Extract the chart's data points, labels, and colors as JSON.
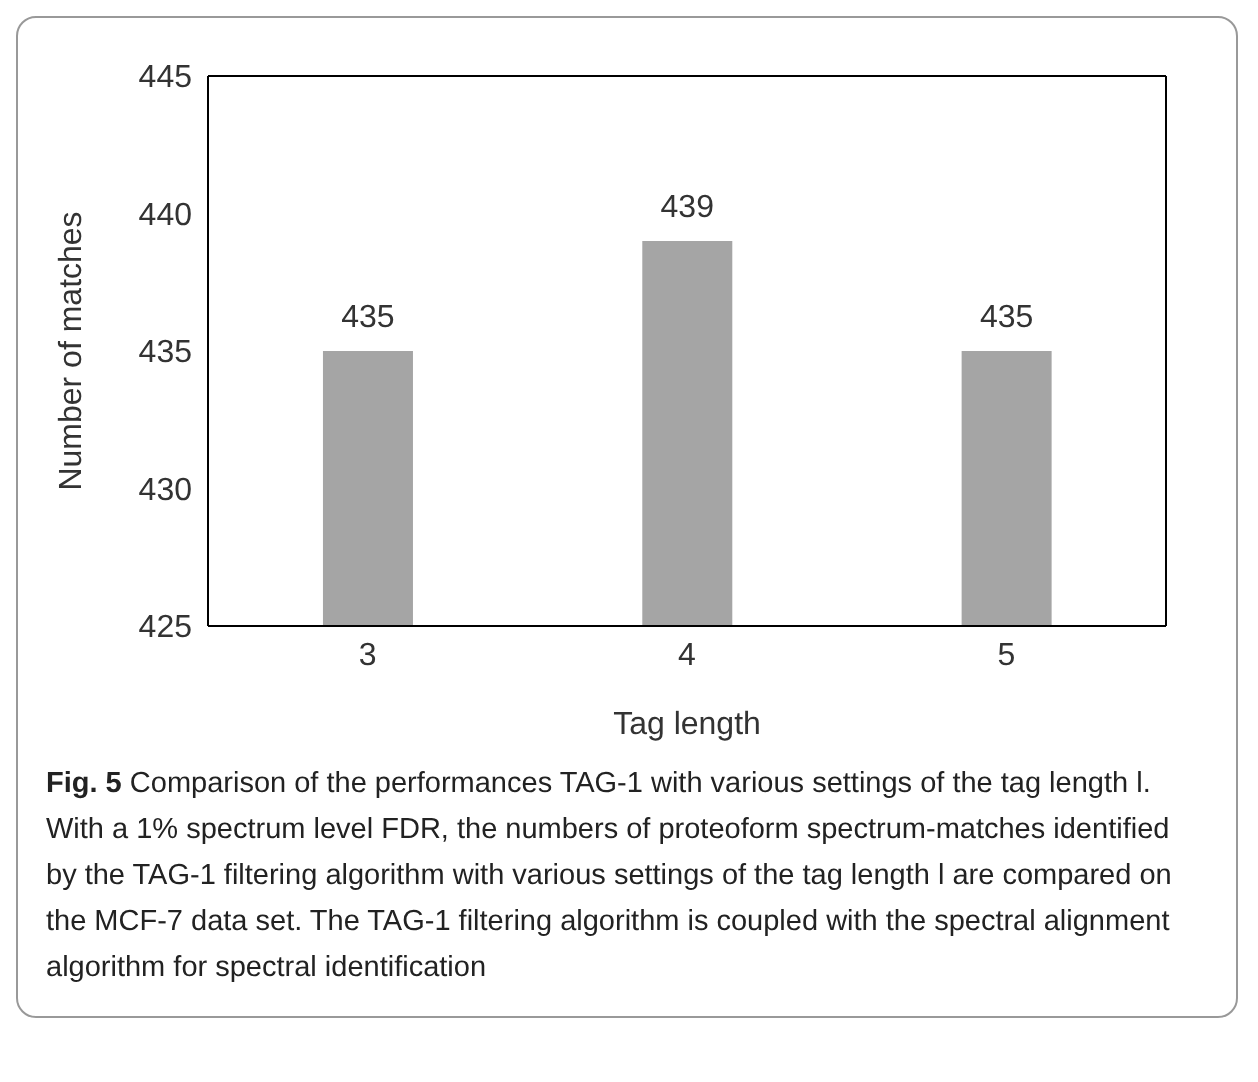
{
  "chart_data": {
    "type": "bar",
    "xlabel": "Tag length",
    "ylabel": "Number of matches",
    "categories": [
      "3",
      "4",
      "5"
    ],
    "values": [
      435,
      439,
      435
    ],
    "color": "#a5a5a5",
    "ylim": [
      425,
      445
    ],
    "yticks": [
      425,
      430,
      435,
      440,
      445
    ],
    "grid": false,
    "data_labels": true,
    "annotations": [
      "Fig. 5",
      "Comparison of the performances TAG-1 with various settings of the tag length l. With a 1% spectrum level FDR, the numbers of proteoform spectrum-matches identified by the TAG-1 filtering algorithm with various settings of the tag length l are compared on the MCF-7 data set. The TAG-1 filtering algorithm is coupled with the spectral alignment algorithm for spectral identification"
    ]
  }
}
